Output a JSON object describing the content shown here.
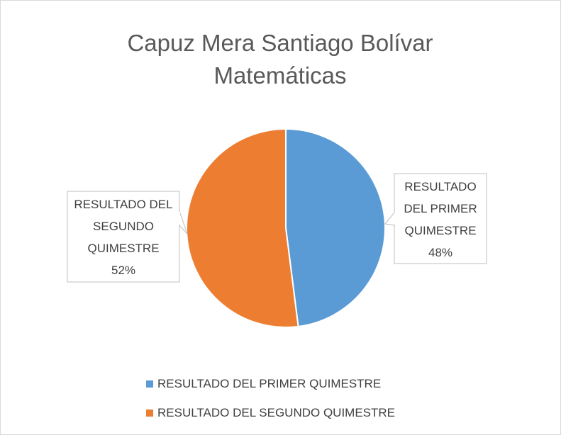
{
  "chart_data": {
    "type": "pie",
    "title": "Capuz Mera Santiago Bolívar Matemáticas",
    "categories": [
      "RESULTADO DEL PRIMER QUIMESTRE",
      "RESULTADO DEL SEGUNDO QUIMESTRE"
    ],
    "values": [
      48,
      52
    ],
    "value_labels": [
      "48%",
      "52%"
    ],
    "colors": [
      "#5b9bd5",
      "#ed7d31"
    ],
    "legend": "bottom"
  }
}
